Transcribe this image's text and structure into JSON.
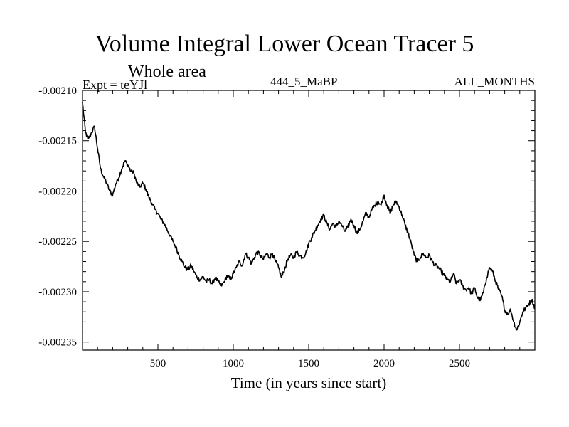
{
  "chart_data": {
    "type": "line",
    "title": "Volume Integral Lower Ocean Tracer 5",
    "subtitle": "Whole area",
    "experiment_label": "Expt = teYJl",
    "run_label": "444_5_MaBP",
    "period_label": "ALL_MONTHS",
    "xlabel": "Time (in years since start)",
    "ylabel": "",
    "xlim": [
      0,
      3000
    ],
    "ylim": [
      -0.002358,
      -0.0021
    ],
    "xticks": [
      500,
      1000,
      1500,
      2000,
      2500
    ],
    "xtick_labels": [
      "500",
      "1000",
      "1500",
      "2000",
      "2500"
    ],
    "yticks": [
      -0.0021,
      -0.00215,
      -0.0022,
      -0.00225,
      -0.0023,
      -0.00235
    ],
    "ytick_labels": [
      "-0.00210",
      "-0.00215",
      "-0.00220",
      "-0.00225",
      "-0.00230",
      "-0.00235"
    ],
    "grid": false,
    "series": [
      {
        "name": "Volume Integral Lower Ocean Tracer 5",
        "color": "#000000",
        "x": [
          0,
          20,
          40,
          60,
          80,
          100,
          120,
          140,
          160,
          180,
          200,
          220,
          240,
          260,
          280,
          300,
          320,
          340,
          360,
          380,
          400,
          420,
          440,
          460,
          480,
          500,
          520,
          540,
          560,
          580,
          600,
          620,
          640,
          660,
          680,
          700,
          720,
          740,
          760,
          780,
          800,
          820,
          840,
          860,
          880,
          900,
          920,
          940,
          960,
          980,
          1000,
          1020,
          1040,
          1060,
          1080,
          1100,
          1120,
          1140,
          1160,
          1180,
          1200,
          1220,
          1240,
          1260,
          1280,
          1300,
          1320,
          1340,
          1360,
          1380,
          1400,
          1420,
          1440,
          1460,
          1480,
          1500,
          1520,
          1540,
          1560,
          1580,
          1600,
          1620,
          1640,
          1660,
          1680,
          1700,
          1720,
          1740,
          1760,
          1780,
          1800,
          1820,
          1840,
          1860,
          1880,
          1900,
          1920,
          1940,
          1960,
          1980,
          2000,
          2020,
          2040,
          2060,
          2080,
          2100,
          2120,
          2140,
          2160,
          2180,
          2200,
          2220,
          2240,
          2260,
          2280,
          2300,
          2320,
          2340,
          2360,
          2380,
          2400,
          2420,
          2440,
          2460,
          2480,
          2500,
          2520,
          2540,
          2560,
          2580,
          2600,
          2620,
          2640,
          2660,
          2680,
          2700,
          2720,
          2740,
          2760,
          2780,
          2800,
          2820,
          2840,
          2860,
          2880,
          2900,
          2920,
          2940,
          2960,
          2980,
          3000
        ],
        "y": [
          -0.002112,
          -0.002142,
          -0.002148,
          -0.002142,
          -0.002136,
          -0.002158,
          -0.002178,
          -0.002186,
          -0.002192,
          -0.0022,
          -0.002204,
          -0.002193,
          -0.002187,
          -0.002178,
          -0.00217,
          -0.002174,
          -0.00218,
          -0.002182,
          -0.002192,
          -0.002196,
          -0.002192,
          -0.002198,
          -0.002206,
          -0.002212,
          -0.002218,
          -0.002222,
          -0.002228,
          -0.002232,
          -0.002238,
          -0.002244,
          -0.00225,
          -0.002256,
          -0.002264,
          -0.00227,
          -0.002276,
          -0.002278,
          -0.002274,
          -0.00228,
          -0.002286,
          -0.002288,
          -0.002285,
          -0.00229,
          -0.002288,
          -0.002292,
          -0.002286,
          -0.00229,
          -0.002294,
          -0.00229,
          -0.002284,
          -0.002288,
          -0.002282,
          -0.002276,
          -0.00227,
          -0.002274,
          -0.002262,
          -0.002266,
          -0.002272,
          -0.002266,
          -0.00226,
          -0.002264,
          -0.002268,
          -0.002262,
          -0.002266,
          -0.002262,
          -0.00227,
          -0.002276,
          -0.002286,
          -0.002278,
          -0.002268,
          -0.002264,
          -0.002266,
          -0.00226,
          -0.002264,
          -0.002266,
          -0.002262,
          -0.002252,
          -0.002246,
          -0.00224,
          -0.002234,
          -0.002228,
          -0.002224,
          -0.002232,
          -0.002238,
          -0.002232,
          -0.002236,
          -0.00223,
          -0.002234,
          -0.00224,
          -0.002236,
          -0.002228,
          -0.002234,
          -0.002242,
          -0.002238,
          -0.00223,
          -0.002222,
          -0.002226,
          -0.002218,
          -0.002214,
          -0.00221,
          -0.002214,
          -0.002204,
          -0.002214,
          -0.002222,
          -0.002214,
          -0.00221,
          -0.002216,
          -0.002224,
          -0.002234,
          -0.002242,
          -0.002252,
          -0.002264,
          -0.00227,
          -0.002266,
          -0.002262,
          -0.002266,
          -0.002264,
          -0.00227,
          -0.002274,
          -0.002276,
          -0.00228,
          -0.002284,
          -0.002288,
          -0.00229,
          -0.002282,
          -0.002292,
          -0.002288,
          -0.002294,
          -0.002298,
          -0.002296,
          -0.002302,
          -0.002296,
          -0.002306,
          -0.002308,
          -0.0023,
          -0.002286,
          -0.002276,
          -0.00228,
          -0.00229,
          -0.002298,
          -0.002304,
          -0.002318,
          -0.002322,
          -0.002318,
          -0.00233,
          -0.002338,
          -0.00233,
          -0.00232,
          -0.002316,
          -0.002312,
          -0.002308,
          -0.002316
        ]
      }
    ]
  }
}
